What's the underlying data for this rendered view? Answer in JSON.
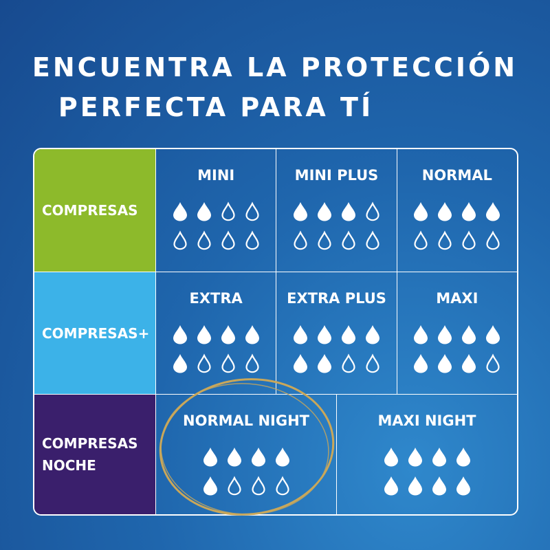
{
  "title": {
    "line1": "ENCUENTRA LA PROTECCIÓN",
    "line2": "PERFECTA PARA TÍ"
  },
  "colors": {
    "compresas": "#8dba2b",
    "compresas_plus": "#3cb2e8",
    "compresas_noche": "#3a1f6c",
    "highlight_ring": "#c9a75a"
  },
  "categories": [
    {
      "label": "COMPRESAS",
      "products": [
        {
          "name": "MINI",
          "filled": 2,
          "total": 8
        },
        {
          "name": "MINI PLUS",
          "filled": 3,
          "total": 8
        },
        {
          "name": "NORMAL",
          "filled": 4,
          "total": 8
        }
      ]
    },
    {
      "label": "COMPRESAS+",
      "products": [
        {
          "name": "EXTRA",
          "filled": 5,
          "total": 8
        },
        {
          "name": "EXTRA PLUS",
          "filled": 6,
          "total": 8
        },
        {
          "name": "MAXI",
          "filled": 7,
          "total": 8
        }
      ]
    },
    {
      "label": "COMPRESAS NOCHE",
      "products": [
        {
          "name": "NORMAL NIGHT",
          "filled": 5,
          "total": 8,
          "highlighted": true
        },
        {
          "name": "MAXI NIGHT",
          "filled": 8,
          "total": 8
        }
      ]
    }
  ]
}
